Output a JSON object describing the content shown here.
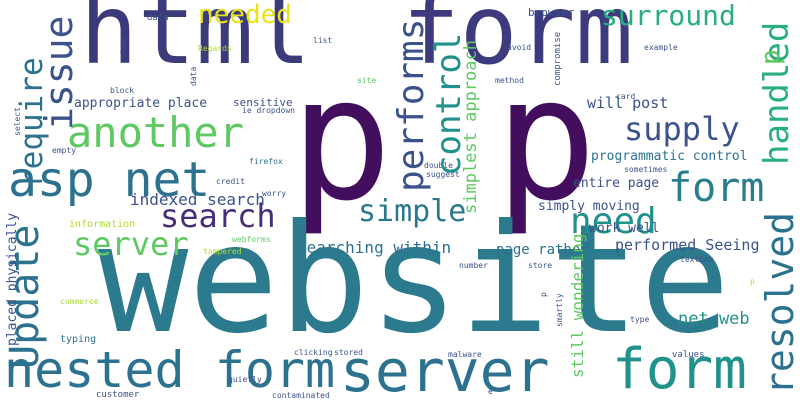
{
  "colors": {
    "background": "#ffffff",
    "dark_purple": "#440154",
    "indigo": "#3b528b",
    "teal_blue": "#2c728e",
    "teal": "#21918c",
    "green": "#28ae80",
    "light_green": "#5ec962",
    "yellow_green": "#addc30",
    "yellow": "#fde725"
  },
  "words": [
    {
      "text": "html",
      "color": "#3b3a7a",
      "vertical": false
    },
    {
      "text": "form",
      "color": "#3e3a7e",
      "vertical": false
    },
    {
      "text": "p p",
      "color": "#440e5e",
      "vertical": false
    },
    {
      "text": "website",
      "color": "#2c7a8e",
      "vertical": false
    },
    {
      "text": "asp net",
      "color": "#2c728e",
      "vertical": false
    },
    {
      "text": "another",
      "color": "#5ec962",
      "vertical": false
    },
    {
      "text": "supply",
      "color": "#3b528b",
      "vertical": false
    },
    {
      "text": "form",
      "color": "#287d8e",
      "vertical": false
    },
    {
      "text": "surround",
      "color": "#28ae80",
      "vertical": false
    },
    {
      "text": "needed",
      "color": "#e8e419",
      "vertical": false
    },
    {
      "text": "search",
      "color": "#472c7a",
      "vertical": false
    },
    {
      "text": "simple",
      "color": "#2a788e",
      "vertical": false
    },
    {
      "text": "need",
      "color": "#21918c",
      "vertical": false
    },
    {
      "text": "server",
      "color": "#5ec962",
      "vertical": false
    },
    {
      "text": "nested form",
      "color": "#2c728e",
      "vertical": false
    },
    {
      "text": "server",
      "color": "#2c728e",
      "vertical": false
    },
    {
      "text": "form",
      "color": "#21918c",
      "vertical": false
    },
    {
      "text": "indexed search",
      "color": "#3b528b",
      "vertical": false
    },
    {
      "text": "searching within",
      "color": "#2c728e",
      "vertical": false
    },
    {
      "text": "appropriate place",
      "color": "#3b528b",
      "vertical": false
    },
    {
      "text": "will post",
      "color": "#3b528b",
      "vertical": false
    },
    {
      "text": "programmatic control",
      "color": "#2c728e",
      "vertical": false
    },
    {
      "text": "entire page",
      "color": "#3b528b",
      "vertical": false
    },
    {
      "text": "simply moving",
      "color": "#3b528b",
      "vertical": false
    },
    {
      "text": "work well",
      "color": "#3b528b",
      "vertical": false
    },
    {
      "text": "performed Seeing",
      "color": "#3b528b",
      "vertical": false
    },
    {
      "text": "page rather",
      "color": "#2c728e",
      "vertical": false
    },
    {
      "text": "net web",
      "color": "#21918c",
      "vertical": false
    },
    {
      "text": "sensitive",
      "color": "#3b528b",
      "vertical": false
    },
    {
      "text": "ie dropdown",
      "color": "#3b528b",
      "vertical": false
    },
    {
      "text": "browser",
      "color": "#3b528b",
      "vertical": false
    },
    {
      "text": "data",
      "color": "#3b528b",
      "vertical": false
    },
    {
      "text": "values",
      "color": "#3b528b",
      "vertical": false
    },
    {
      "text": "customer",
      "color": "#3b528b",
      "vertical": false
    },
    {
      "text": "information",
      "color": "#addc30",
      "vertical": false
    },
    {
      "text": "typing",
      "color": "#2c728e",
      "vertical": false
    },
    {
      "text": "firefox",
      "color": "#2c728e",
      "vertical": false
    },
    {
      "text": "credit",
      "color": "#3b528b",
      "vertical": false
    },
    {
      "text": "worry",
      "color": "#3b528b",
      "vertical": false
    },
    {
      "text": "empty",
      "color": "#3b528b",
      "vertical": false
    },
    {
      "text": "double",
      "color": "#3b528b",
      "vertical": false
    },
    {
      "text": "suggest",
      "color": "#3b528b",
      "vertical": false
    },
    {
      "text": "sometimes",
      "color": "#3b528b",
      "vertical": false
    },
    {
      "text": "example",
      "color": "#3b528b",
      "vertical": false
    },
    {
      "text": "list",
      "color": "#3b528b",
      "vertical": false
    },
    {
      "text": "avoid",
      "color": "#3b528b",
      "vertical": false
    },
    {
      "text": "Regards",
      "color": "#addc30",
      "vertical": false
    },
    {
      "text": "site",
      "color": "#5ec962",
      "vertical": false
    },
    {
      "text": "method",
      "color": "#3b528b",
      "vertical": false
    },
    {
      "text": "block",
      "color": "#3b528b",
      "vertical": false
    },
    {
      "text": "card",
      "color": "#3b528b",
      "vertical": false
    },
    {
      "text": "webforms",
      "color": "#5ec962",
      "vertical": false
    },
    {
      "text": "tampered",
      "color": "#addc30",
      "vertical": false
    },
    {
      "text": "number",
      "color": "#3b528b",
      "vertical": false
    },
    {
      "text": "store",
      "color": "#3b528b",
      "vertical": false
    },
    {
      "text": "textbox",
      "color": "#3b528b",
      "vertical": false
    },
    {
      "text": "commerce",
      "color": "#addc30",
      "vertical": false
    },
    {
      "text": "type",
      "color": "#3b528b",
      "vertical": false
    },
    {
      "text": "clicking",
      "color": "#3b528b",
      "vertical": false
    },
    {
      "text": "stored",
      "color": "#3b528b",
      "vertical": false
    },
    {
      "text": "malware",
      "color": "#3b528b",
      "vertical": false
    },
    {
      "text": "contaminated",
      "color": "#3b528b",
      "vertical": false
    },
    {
      "text": "e",
      "color": "#3b528b",
      "vertical": false
    },
    {
      "text": "p",
      "color": "#addc30",
      "vertical": false
    },
    {
      "text": "quietly",
      "color": "#3b528b",
      "vertical": false
    },
    {
      "text": "require",
      "color": "#2c728e",
      "vertical": true
    },
    {
      "text": "Update",
      "color": "#2c728e",
      "vertical": true
    },
    {
      "text": "issue",
      "color": "#3b528b",
      "vertical": true
    },
    {
      "text": "performs",
      "color": "#3b528b",
      "vertical": true
    },
    {
      "text": "control",
      "color": "#21918c",
      "vertical": true
    },
    {
      "text": "handled",
      "color": "#28ae80",
      "vertical": true
    },
    {
      "text": "resolved",
      "color": "#2c728e",
      "vertical": true
    },
    {
      "text": "p",
      "color": "#5ec962",
      "vertical": true
    },
    {
      "text": "simplest approach",
      "color": "#5ec962",
      "vertical": true
    },
    {
      "text": "still wondering",
      "color": "#5ec962",
      "vertical": true
    },
    {
      "text": "placed physically",
      "color": "#3b528b",
      "vertical": true
    },
    {
      "text": "compromise",
      "color": "#3b528b",
      "vertical": true
    },
    {
      "text": "smartly",
      "color": "#3b528b",
      "vertical": true
    },
    {
      "text": "p",
      "color": "#3b528b",
      "vertical": true
    },
    {
      "text": "show",
      "color": "#3b528b",
      "vertical": true
    },
    {
      "text": "select",
      "color": "#3b528b",
      "vertical": true
    },
    {
      "text": "data",
      "color": "#3b528b",
      "vertical": true
    }
  ]
}
